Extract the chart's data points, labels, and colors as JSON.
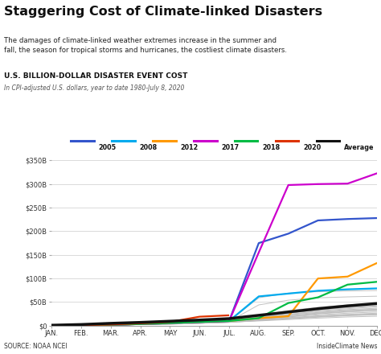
{
  "title": "Staggering Cost of Climate-linked Disasters",
  "subtitle": "The damages of climate-linked weather extremes increase in the summer and\nfall, the season for tropical storms and hurricanes, the costliest climate disasters.",
  "chart_label": "U.S. BILLION-DOLLAR DISASTER EVENT COST",
  "chart_sublabel": "In CPI-adjusted U.S. dollars, year to date 1980-July 8, 2020",
  "source_left": "SOURCE: NOAA NCEI",
  "source_right": "InsideClimate News",
  "months": [
    "JAN.",
    "FEB.",
    "MAR.",
    "APR.",
    "MAY",
    "JUN.",
    "JUL.",
    "AUG.",
    "SEP.",
    "OCT.",
    "NOV.",
    "DEC."
  ],
  "yticks": [
    0,
    50,
    100,
    150,
    200,
    250,
    300,
    350
  ],
  "ylabels": [
    "$0",
    "$50B",
    "$100B",
    "$150B",
    "$200B",
    "$250B",
    "$300B",
    "$350B"
  ],
  "highlighted": {
    "2005": {
      "color": "#3355cc",
      "data": [
        0.5,
        1.0,
        2.0,
        3.5,
        5.5,
        8.0,
        10.0,
        175.0,
        195.0,
        223.0,
        226.0,
        228.0
      ]
    },
    "2008": {
      "color": "#00aaee",
      "data": [
        0.5,
        1.0,
        2.0,
        3.5,
        5.5,
        8.0,
        10.0,
        62.0,
        68.0,
        74.0,
        77.0,
        79.0
      ]
    },
    "2012": {
      "color": "#ff9900",
      "data": [
        0.5,
        1.0,
        2.0,
        3.5,
        5.5,
        8.0,
        10.0,
        16.0,
        20.0,
        100.0,
        104.0,
        133.0
      ]
    },
    "2017": {
      "color": "#cc00cc",
      "data": [
        0.5,
        1.0,
        2.0,
        3.5,
        5.5,
        8.0,
        10.0,
        155.0,
        298.0,
        300.0,
        301.0,
        323.0
      ]
    },
    "2018": {
      "color": "#00bb44",
      "data": [
        0.5,
        1.0,
        2.0,
        3.5,
        5.5,
        8.0,
        10.0,
        16.0,
        48.0,
        60.0,
        87.0,
        93.0
      ]
    },
    "2020": {
      "color": "#dd3300",
      "data": [
        0.5,
        1.0,
        2.5,
        5.0,
        8.0,
        19.0,
        22.0,
        null,
        null,
        null,
        null,
        null
      ]
    },
    "Average": {
      "color": "#111111",
      "data": [
        1.0,
        2.5,
        5.0,
        7.0,
        9.5,
        12.0,
        15.0,
        22.0,
        29.0,
        36.0,
        42.0,
        47.0
      ],
      "lw": 2.5
    }
  },
  "gray_lines": [
    [
      0.3,
      0.7,
      1.5,
      2.5,
      4.0,
      5.5,
      7.5,
      10.0,
      13.0,
      16.0,
      18.5,
      20.0
    ],
    [
      0.3,
      0.7,
      1.5,
      2.5,
      4.0,
      5.5,
      8.0,
      12.0,
      17.0,
      21.0,
      24.0,
      26.5
    ],
    [
      0.3,
      0.7,
      1.5,
      2.5,
      4.0,
      6.0,
      9.0,
      14.0,
      19.0,
      25.0,
      29.0,
      32.0
    ],
    [
      0.3,
      0.7,
      1.5,
      2.5,
      4.0,
      6.0,
      9.0,
      14.0,
      20.0,
      27.0,
      32.0,
      35.0
    ],
    [
      0.3,
      0.7,
      1.5,
      2.5,
      4.0,
      6.0,
      9.0,
      17.0,
      27.0,
      34.0,
      39.0,
      43.0
    ],
    [
      0.3,
      0.7,
      1.5,
      2.5,
      4.0,
      6.0,
      9.0,
      19.0,
      29.0,
      37.0,
      42.0,
      46.0
    ],
    [
      0.3,
      0.7,
      1.5,
      2.5,
      4.5,
      6.5,
      10.0,
      21.0,
      32.0,
      39.0,
      44.0,
      48.0
    ],
    [
      0.3,
      0.7,
      1.5,
      2.5,
      3.5,
      5.0,
      7.0,
      11.0,
      15.0,
      19.0,
      22.0,
      24.0
    ],
    [
      0.3,
      0.7,
      1.5,
      2.5,
      3.5,
      5.0,
      7.5,
      12.0,
      16.0,
      20.0,
      23.0,
      25.0
    ],
    [
      0.3,
      0.7,
      1.5,
      3.0,
      5.0,
      7.0,
      10.0,
      15.0,
      21.0,
      26.0,
      30.0,
      33.0
    ],
    [
      0.3,
      0.7,
      1.5,
      3.0,
      5.5,
      8.0,
      11.0,
      17.0,
      23.0,
      28.0,
      32.0,
      35.0
    ],
    [
      0.3,
      0.7,
      1.5,
      2.5,
      4.0,
      6.0,
      9.0,
      16.0,
      23.0,
      31.0,
      36.0,
      40.0
    ],
    [
      0.3,
      0.7,
      1.5,
      2.5,
      4.5,
      7.0,
      11.0,
      19.0,
      26.0,
      33.0,
      38.0,
      42.0
    ],
    [
      0.3,
      0.7,
      1.5,
      2.5,
      3.5,
      5.0,
      7.0,
      11.0,
      14.5,
      18.0,
      21.0,
      23.0
    ],
    [
      0.3,
      0.7,
      1.5,
      2.5,
      3.5,
      5.5,
      8.5,
      14.0,
      18.5,
      23.0,
      26.5,
      29.0
    ],
    [
      0.3,
      0.7,
      1.5,
      3.0,
      5.0,
      7.5,
      11.0,
      18.0,
      24.0,
      30.0,
      34.0,
      37.0
    ],
    [
      0.3,
      0.7,
      1.5,
      2.5,
      4.0,
      6.0,
      9.0,
      44.0,
      54.0,
      59.0,
      61.0,
      62.5
    ],
    [
      0.3,
      0.7,
      1.5,
      2.5,
      4.0,
      6.5,
      9.5,
      59.0,
      69.0,
      72.0,
      73.5,
      74.5
    ]
  ],
  "bg_color": "#ffffff",
  "gray_color": "#bbbbbb",
  "gray_lw": 0.7,
  "highlighted_lw": 1.6,
  "grid_color": "#cccccc"
}
